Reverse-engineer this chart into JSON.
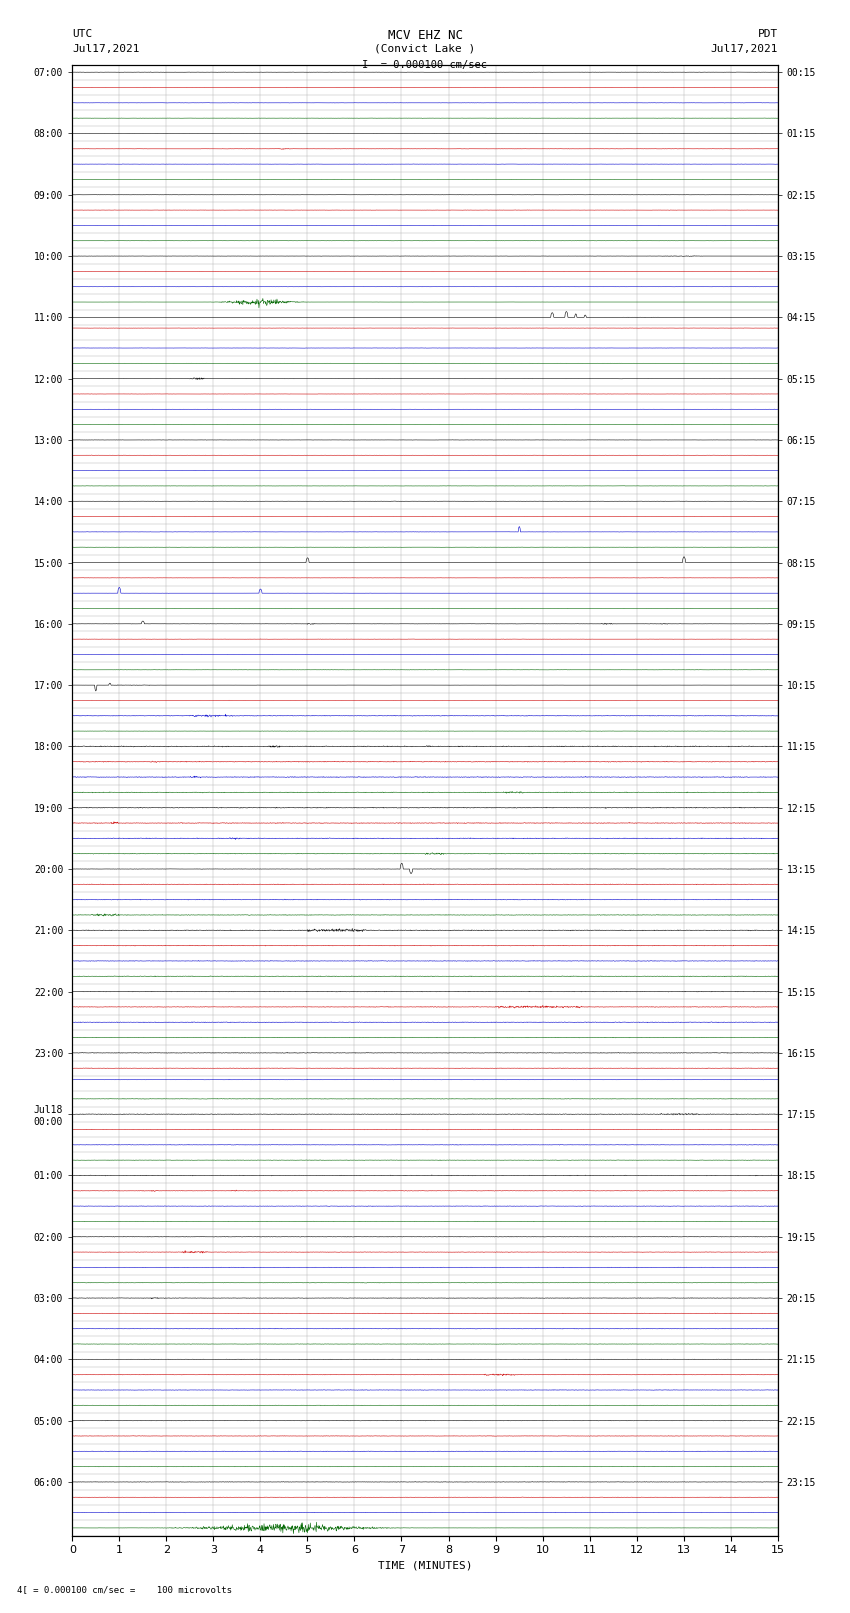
{
  "title_line1": "MCV EHZ NC",
  "title_line2": "(Convict Lake )",
  "title_line3": "I  = 0.000100 cm/sec",
  "label_utc": "UTC",
  "label_date_utc": "Jul17,2021",
  "label_pdt": "PDT",
  "label_date_pdt": "Jul17,2021",
  "xlabel": "TIME (MINUTES)",
  "scale_label": "= 0.000100 cm/sec =    100 microvolts",
  "scale_symbol": "4[",
  "left_times": [
    "07:00",
    "08:00",
    "09:00",
    "10:00",
    "11:00",
    "12:00",
    "13:00",
    "14:00",
    "15:00",
    "16:00",
    "17:00",
    "18:00",
    "19:00",
    "20:00",
    "21:00",
    "22:00",
    "23:00",
    "Jul18\n00:00",
    "01:00",
    "02:00",
    "03:00",
    "04:00",
    "05:00",
    "06:00"
  ],
  "right_times": [
    "00:15",
    "01:15",
    "02:15",
    "03:15",
    "04:15",
    "05:15",
    "06:15",
    "07:15",
    "08:15",
    "09:15",
    "10:15",
    "11:15",
    "12:15",
    "13:15",
    "14:15",
    "15:15",
    "16:15",
    "17:15",
    "18:15",
    "19:15",
    "20:15",
    "21:15",
    "22:15",
    "23:15"
  ],
  "n_hours": 24,
  "traces_per_hour": 4,
  "n_minutes": 15,
  "background_color": "#ffffff",
  "grid_color": "#aaaaaa",
  "trace_colors": [
    "#000000",
    "#cc0000",
    "#0000cc",
    "#006600"
  ],
  "fig_width": 8.5,
  "fig_height": 16.13,
  "dpi": 100
}
